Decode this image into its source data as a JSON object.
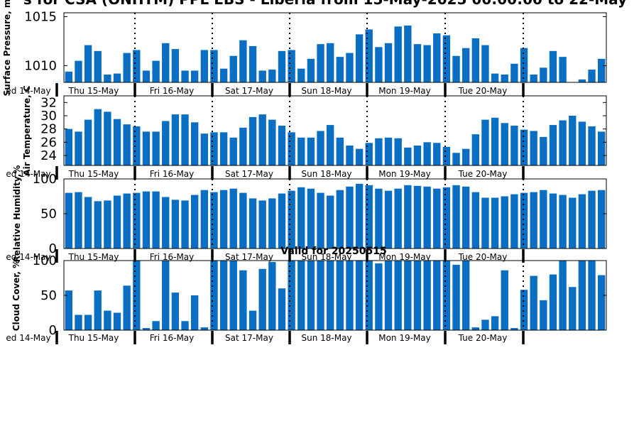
{
  "title": "s for CSA (ONHTM) PPL EBS  - Liberia from 15-May-2025 00:00:00 to 22-May",
  "subtitle": "Valid for 20250515",
  "colors": {
    "bar": "#0a6fc2",
    "axis": "#000000",
    "divider": "#000000"
  },
  "day_labels": [
    "ed 14-May",
    "Thu 15-May",
    "Fri 16-May",
    "Sat 17-May",
    "Sun 18-May",
    "Mon 19-May",
    "Tue 20-May"
  ],
  "chart_data": [
    {
      "type": "bar",
      "ylabel": "Surface Pressure, m",
      "ylim": [
        1008.3,
        1015.4
      ],
      "yticks": [
        1010,
        1015
      ],
      "values": [
        1009.4,
        1010.5,
        1012.1,
        1011.5,
        1009.1,
        1009.2,
        1011.3,
        1011.6,
        1009.5,
        1010.5,
        1012.3,
        1011.7,
        1009.5,
        1009.5,
        1011.6,
        1011.6,
        1009.7,
        1011.0,
        1012.6,
        1012.0,
        1009.5,
        1009.6,
        1011.5,
        1011.6,
        1009.7,
        1010.7,
        1012.2,
        1012.3,
        1010.9,
        1011.3,
        1013.2,
        1013.7,
        1011.9,
        1012.3,
        1014.0,
        1014.1,
        1012.2,
        1012.1,
        1013.3,
        1013.1,
        1011.0,
        1011.8,
        1012.8,
        1012.1,
        1009.2,
        1009.1,
        1010.2,
        1011.8,
        1009.1,
        1009.8,
        1011.5,
        1010.9,
        null,
        1008.6,
        1009.6,
        1010.7
      ],
      "grid": false
    },
    {
      "type": "bar",
      "ylabel": "Air Temperature, C",
      "ylim": [
        22.5,
        33.0
      ],
      "yticks": [
        24,
        26,
        28,
        30,
        32
      ],
      "values": [
        28.0,
        27.6,
        29.4,
        31.0,
        30.6,
        29.5,
        28.7,
        28.4,
        27.6,
        27.6,
        29.2,
        30.2,
        30.2,
        29.0,
        27.3,
        27.5,
        27.5,
        26.7,
        28.2,
        29.8,
        30.2,
        29.4,
        28.5,
        27.5,
        26.7,
        26.7,
        27.7,
        28.6,
        26.7,
        25.5,
        25.0,
        25.9,
        26.6,
        26.7,
        26.6,
        25.2,
        25.5,
        26.0,
        25.9,
        25.3,
        24.4,
        25.0,
        27.2,
        29.4,
        29.7,
        28.9,
        28.5,
        27.9,
        27.7,
        26.8,
        28.6,
        29.3,
        30.0,
        29.1,
        28.4,
        27.6
      ],
      "grid": false
    },
    {
      "type": "bar",
      "ylabel": "Relative Humidity,%",
      "ylim": [
        0,
        100
      ],
      "yticks": [
        0,
        50,
        100
      ],
      "values": [
        80,
        81,
        74,
        68,
        69,
        76,
        79,
        80,
        82,
        82,
        74,
        70,
        69,
        77,
        84,
        81,
        84,
        86,
        80,
        72,
        69,
        72,
        79,
        83,
        88,
        86,
        80,
        76,
        84,
        89,
        93,
        91,
        86,
        83,
        86,
        91,
        90,
        89,
        86,
        88,
        91,
        89,
        81,
        73,
        73,
        75,
        78,
        80,
        81,
        84,
        79,
        77,
        73,
        78,
        83,
        84
      ],
      "grid": false
    },
    {
      "type": "bar",
      "ylabel": "Cloud Cover, %",
      "ylim": [
        0,
        100
      ],
      "yticks": [
        0,
        50,
        100
      ],
      "values": [
        57,
        22,
        22,
        57,
        28,
        25,
        64,
        100,
        3,
        13,
        100,
        54,
        13,
        50,
        4,
        100,
        100,
        100,
        86,
        28,
        88,
        98,
        60,
        100,
        100,
        100,
        100,
        100,
        100,
        100,
        100,
        100,
        96,
        100,
        100,
        100,
        100,
        100,
        100,
        100,
        94,
        100,
        4,
        15,
        20,
        86,
        3,
        58,
        78,
        43,
        80,
        100,
        62,
        100,
        100,
        79
      ],
      "grid": false
    }
  ]
}
